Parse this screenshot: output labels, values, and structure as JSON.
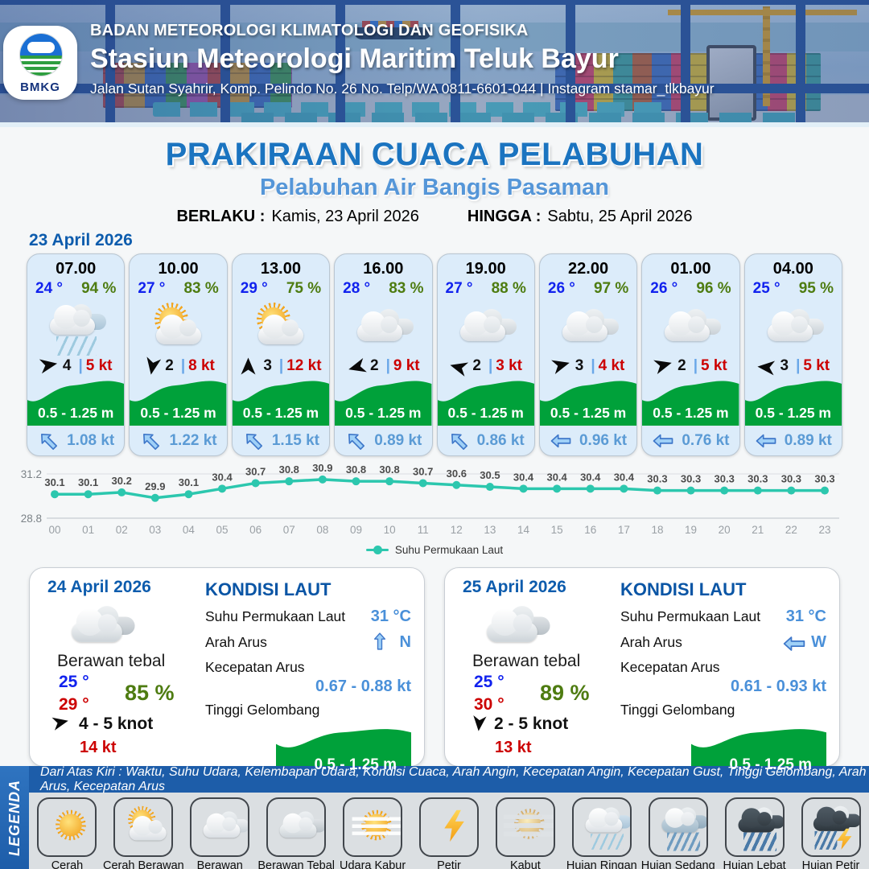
{
  "header": {
    "agency": "BADAN METEOROLOGI KLIMATOLOGI DAN GEOFISIKA",
    "station": "Stasiun Meteorologi Maritim Teluk Bayur",
    "address": "Jalan Sutan Syahrir, Komp. Pelindo No. 26 No. Telp/WA 0811-6601-044 | Instagram stamar_tlkbayur",
    "logo_text": "BMKG"
  },
  "title": {
    "main": "PRAKIRAAN CUACA PELABUHAN",
    "subtitle": "Pelabuhan Air Bangis Pasaman",
    "berlaku_label": "BERLAKU :",
    "berlaku_value": "Kamis, 23 April 2026",
    "hingga_label": "HINGGA :",
    "hingga_value": "Sabtu, 25 April 2026"
  },
  "forecast": {
    "date_label": "23 April 2026",
    "cards": [
      {
        "time": "07.00",
        "temp": "24 °",
        "humidity": "94 %",
        "icon": "hujan-ringan",
        "wind_deg": -10,
        "wind_speed": "4",
        "gust": "5 kt",
        "wave": "0.5 - 1.25 m",
        "current_deg": 45,
        "current": "1.08 kt"
      },
      {
        "time": "10.00",
        "temp": "27 °",
        "humidity": "83 %",
        "icon": "cerah-berawan",
        "wind_deg": 100,
        "wind_speed": "2",
        "gust": "8 kt",
        "wave": "0.5 - 1.25 m",
        "current_deg": 45,
        "current": "1.22 kt"
      },
      {
        "time": "13.00",
        "temp": "29 °",
        "humidity": "75 %",
        "icon": "cerah-berawan",
        "wind_deg": -90,
        "wind_speed": "3",
        "gust": "12 kt",
        "wave": "0.5 - 1.25 m",
        "current_deg": 45,
        "current": "1.15 kt"
      },
      {
        "time": "16.00",
        "temp": "28 °",
        "humidity": "83 %",
        "icon": "berawan",
        "wind_deg": 165,
        "wind_speed": "2",
        "gust": "9 kt",
        "wave": "0.5 - 1.25 m",
        "current_deg": 45,
        "current": "0.89 kt"
      },
      {
        "time": "19.00",
        "temp": "27 °",
        "humidity": "88 %",
        "icon": "berawan",
        "wind_deg": 195,
        "wind_speed": "2",
        "gust": "3 kt",
        "wave": "0.5 - 1.25 m",
        "current_deg": 45,
        "current": "0.86 kt"
      },
      {
        "time": "22.00",
        "temp": "26 °",
        "humidity": "97 %",
        "icon": "berawan",
        "wind_deg": -15,
        "wind_speed": "3",
        "gust": "4 kt",
        "wave": "0.5 - 1.25 m",
        "current_deg": 0,
        "current": "0.96 kt"
      },
      {
        "time": "01.00",
        "temp": "26 °",
        "humidity": "96 %",
        "icon": "berawan",
        "wind_deg": -15,
        "wind_speed": "2",
        "gust": "5 kt",
        "wave": "0.5 - 1.25 m",
        "current_deg": 0,
        "current": "0.76 kt"
      },
      {
        "time": "04.00",
        "temp": "25 °",
        "humidity": "95 %",
        "icon": "berawan",
        "wind_deg": 185,
        "wind_speed": "3",
        "gust": "5 kt",
        "wave": "0.5 - 1.25 m",
        "current_deg": 0,
        "current": "0.89 kt"
      }
    ]
  },
  "chart_data": {
    "type": "line",
    "series_label": "Suhu Permukaan Laut",
    "x": [
      "00",
      "01",
      "02",
      "03",
      "04",
      "05",
      "06",
      "07",
      "08",
      "09",
      "10",
      "11",
      "12",
      "13",
      "14",
      "15",
      "16",
      "17",
      "18",
      "19",
      "20",
      "21",
      "22",
      "23"
    ],
    "values": [
      30.1,
      30.1,
      30.2,
      29.9,
      30.1,
      30.4,
      30.7,
      30.8,
      30.9,
      30.8,
      30.8,
      30.7,
      30.6,
      30.5,
      30.4,
      30.4,
      30.4,
      30.4,
      30.3,
      30.3,
      30.3,
      30.3,
      30.3,
      30.3
    ],
    "ylim": [
      28.8,
      31.2
    ],
    "yticks": [
      28.8,
      31.2
    ],
    "grid": true,
    "legend_position": "bottom",
    "line_color": "#2cc7ae"
  },
  "daily": [
    {
      "date": "24 April 2026",
      "icon": "berawan-tebal",
      "condition": "Berawan tebal",
      "temp_min": "25 °",
      "temp_max": "29 °",
      "humidity": "85 %",
      "wind_deg": -12,
      "wind_range": "4  - 5 knot",
      "gust": "14 kt",
      "sea_title": "KONDISI LAUT",
      "sst_label": "Suhu Permukaan Laut",
      "sst_value": "31 °C",
      "arah_label": "Arah Arus",
      "arah_deg": 90,
      "arah_value": "N",
      "kec_label": "Kecepatan Arus",
      "kec_value": "0.67 - 0.88 kt",
      "wave_label": "Tinggi Gelombang",
      "wave_value": "0.5 - 1.25 m"
    },
    {
      "date": "25 April 2026",
      "icon": "berawan-tebal",
      "condition": "Berawan tebal",
      "temp_min": "25 °",
      "temp_max": "30 °",
      "humidity": "89 %",
      "wind_deg": 95,
      "wind_range": "2  - 5 knot",
      "gust": "13 kt",
      "sea_title": "KONDISI LAUT",
      "sst_label": "Suhu Permukaan Laut",
      "sst_value": "31 °C",
      "arah_label": "Arah Arus",
      "arah_deg": 0,
      "arah_value": "W",
      "kec_label": "Kecepatan Arus",
      "kec_value": "0.61 - 0.93 kt",
      "wave_label": "Tinggi Gelombang",
      "wave_value": "0.5 - 1.25 m"
    }
  ],
  "legend": {
    "side_label": "LEGENDA",
    "ribbon": "Dari Atas Kiri : Waktu, Suhu Udara, Kelembapan Udara, Kondisi Cuaca, Arah Angin, Kecepatan Angin, Kecepatan Gust, Tinggi Gelombang, Arah Arus, Kecepatan Arus",
    "items": [
      {
        "label": "Cerah",
        "icon": "cerah"
      },
      {
        "label": "Cerah Berawan",
        "icon": "cerah-berawan"
      },
      {
        "label": "Berawan",
        "icon": "berawan"
      },
      {
        "label": "Berawan Tebal",
        "icon": "berawan-tebal"
      },
      {
        "label": "Udara Kabur",
        "icon": "udara-kabur"
      },
      {
        "label": "Petir",
        "icon": "petir"
      },
      {
        "label": "Kabut",
        "icon": "kabut"
      },
      {
        "label": "Hujan Ringan",
        "icon": "hujan-ringan"
      },
      {
        "label": "Hujan Sedang",
        "icon": "hujan-sedang"
      },
      {
        "label": "Hujan Lebat",
        "icon": "hujan-lebat"
      },
      {
        "label": "Hujan Petir",
        "icon": "hujan-petir"
      }
    ]
  },
  "colors": {
    "accent_blue": "#1b74c0",
    "subtitle_blue": "#5596d8",
    "temp_blue": "#1122ee",
    "humidity_green": "#4e7c11",
    "gust_red": "#cc0000",
    "wave_green": "#00a13a",
    "current_blue": "#5b9bd5",
    "chart_teal": "#2cc7ae",
    "legend_ribbon_blue": "#1d5da9"
  }
}
